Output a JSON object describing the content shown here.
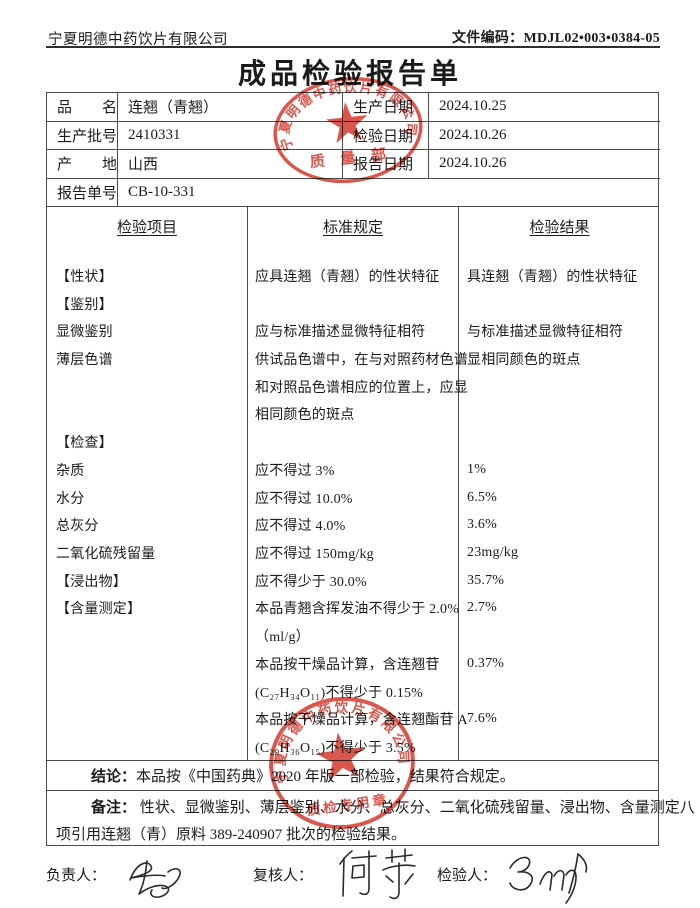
{
  "header": {
    "company": "宁夏明德中药饮片有限公司",
    "doc_code": "文件编码：MDJL02•003•0384-05",
    "title": "成品检验报告单"
  },
  "info": {
    "rows": [
      {
        "label": "品　　名",
        "value": "连翘（青翘）",
        "label2": "生产日期",
        "value2": "2024.10.25"
      },
      {
        "label": "生产批号",
        "value": "2410331",
        "label2": "检验日期",
        "value2": "2024.10.26"
      },
      {
        "label": "产　　地",
        "value": "山西",
        "label2": "报告日期",
        "value2": "2024.10.26"
      },
      {
        "label": "报告单号",
        "value": "CB-10-331"
      }
    ]
  },
  "table": {
    "headers": [
      "检验项目",
      "标准规定",
      "检验结果"
    ],
    "rows": [
      [
        "【性状】",
        "应具连翘（青翘）的性状特征",
        "具连翘（青翘）的性状特征"
      ],
      [
        "【鉴别】",
        "",
        ""
      ],
      [
        "显微鉴别",
        "应与标准描述显微特征相符",
        "与标准描述显微特征相符"
      ],
      [
        "薄层色谱",
        "供试品色谱中，在与对照药材色谱",
        "显相同颜色的斑点"
      ],
      [
        "",
        "和对照品色谱相应的位置上，应显",
        ""
      ],
      [
        "",
        "相同颜色的斑点",
        ""
      ],
      [
        "【检查】",
        "",
        ""
      ],
      [
        "杂质",
        "应不得过 3%",
        "1%"
      ],
      [
        "水分",
        "应不得过 10.0%",
        "6.5%"
      ],
      [
        "总灰分",
        "应不得过 4.0%",
        "3.6%"
      ],
      [
        "二氧化硫残留量",
        "应不得过 150mg/kg",
        "23mg/kg"
      ],
      [
        "【浸出物】",
        "应不得少于 30.0%",
        "35.7%"
      ],
      [
        "【含量测定】",
        "本品青翘含挥发油不得少于 2.0%",
        "2.7%"
      ],
      [
        "",
        "（ml/g）",
        ""
      ],
      [
        "",
        "本品按干燥品计算，含连翘苷",
        "0.37%"
      ],
      [
        "",
        "(C₂₇H₃₄O₁₁)不得少于 0.15%",
        ""
      ],
      [
        "",
        "本品按干燥品计算，含连翘酯苷 A",
        "7.6%"
      ],
      [
        "",
        "(C₂₉H₃₆O₁₅)不得少于 3.5%",
        ""
      ]
    ]
  },
  "conclusion": {
    "label": "结论：",
    "text": "本品按《中国药典》2020 年版一部检验，结果符合规定。"
  },
  "remark": {
    "label": "备注：",
    "line1": "性状、显微鉴别、薄层鉴别、水分、总灰分、二氧化硫残留量、浸出物、含量测定八",
    "line2": "项引用连翘（青）原料 389-240907 批次的检验结果。"
  },
  "signers": [
    {
      "label": "负责人："
    },
    {
      "label": "复核人："
    },
    {
      "label": "检验人："
    }
  ],
  "stamps": {
    "color": "#d5392e",
    "top": {
      "ring_text": "宁夏明德中药饮片有限公司",
      "bottom_text": "质 量 部"
    },
    "bottom": {
      "ring_text": "宁夏明德中药饮片有限公司",
      "bottom_text": "质检专用章"
    }
  }
}
